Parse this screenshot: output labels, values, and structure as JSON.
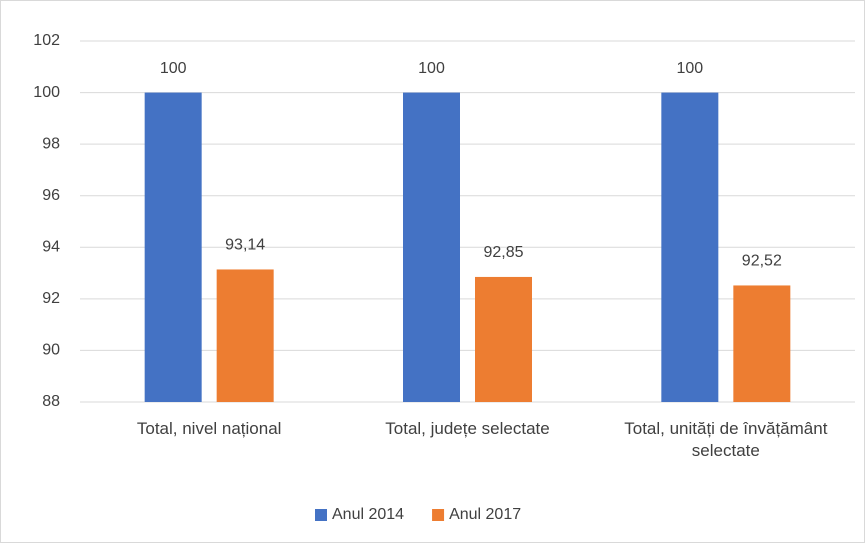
{
  "chart_data": {
    "type": "bar",
    "categories": [
      "Total, nivel național",
      "Total, județe selectate",
      "Total, unități de învățământ selectate"
    ],
    "series": [
      {
        "name": "Anul 2014",
        "color": "#4472c4",
        "values": [
          100,
          100,
          100
        ]
      },
      {
        "name": "Anul 2017",
        "color": "#ed7d31",
        "values": [
          93.14,
          92.85,
          92.52
        ],
        "value_labels": [
          "93,14",
          "92,85",
          "92,52"
        ]
      }
    ],
    "ylim": [
      88,
      102
    ],
    "yticks": [
      88,
      90,
      92,
      94,
      96,
      98,
      100,
      102
    ],
    "grid": true,
    "legend": "bottom"
  }
}
